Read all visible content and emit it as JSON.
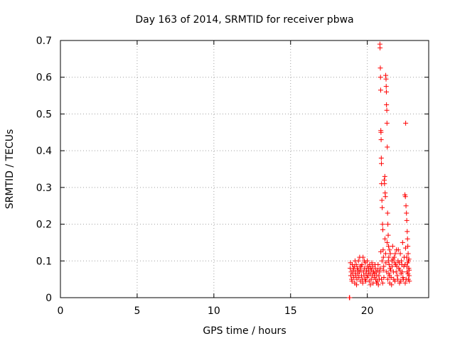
{
  "chart_data": {
    "type": "scatter",
    "title": "Day 163 of 2014, SRMTID for receiver pbwa",
    "xlabel": "GPS time / hours",
    "ylabel": "SRMTID / TECUs",
    "xlim": [
      0,
      24
    ],
    "ylim": [
      0,
      0.7
    ],
    "xticks": [
      0,
      5,
      10,
      15,
      20
    ],
    "xtick_labels": [
      "0",
      "5",
      "10",
      "15",
      "20"
    ],
    "yticks": [
      0,
      0.1,
      0.2,
      0.3,
      0.4,
      0.5,
      0.6,
      0.7
    ],
    "ytick_labels": [
      "0",
      "0.1",
      "0.2",
      "0.3",
      "0.4",
      "0.5",
      "0.6",
      "0.7"
    ],
    "grid": true,
    "marker": "plus",
    "color": "#ff0000",
    "series": [
      {
        "name": "SRMTID",
        "points": [
          [
            18.83,
            0.0
          ],
          [
            18.85,
            0.0
          ],
          [
            18.88,
            0.08
          ],
          [
            18.92,
            0.06
          ],
          [
            18.95,
            0.07
          ],
          [
            18.98,
            0.05
          ],
          [
            19.02,
            0.09
          ],
          [
            19.05,
            0.065
          ],
          [
            19.08,
            0.075
          ],
          [
            19.12,
            0.055
          ],
          [
            19.15,
            0.085
          ],
          [
            19.18,
            0.04
          ],
          [
            19.22,
            0.07
          ],
          [
            19.25,
            0.06
          ],
          [
            19.28,
            0.09
          ],
          [
            19.32,
            0.05
          ],
          [
            19.35,
            0.08
          ],
          [
            19.38,
            0.065
          ],
          [
            19.42,
            0.1
          ],
          [
            19.45,
            0.055
          ],
          [
            19.48,
            0.07
          ],
          [
            19.52,
            0.085
          ],
          [
            19.55,
            0.045
          ],
          [
            19.58,
            0.075
          ],
          [
            19.62,
            0.06
          ],
          [
            19.65,
            0.09
          ],
          [
            19.68,
            0.05
          ],
          [
            19.72,
            0.11
          ],
          [
            19.75,
            0.07
          ],
          [
            19.78,
            0.06
          ],
          [
            19.82,
            0.08
          ],
          [
            19.85,
            0.05
          ],
          [
            19.88,
            0.095
          ],
          [
            19.92,
            0.065
          ],
          [
            19.95,
            0.075
          ],
          [
            19.98,
            0.055
          ],
          [
            20.02,
            0.085
          ],
          [
            20.05,
            0.06
          ],
          [
            20.08,
            0.07
          ],
          [
            20.12,
            0.045
          ],
          [
            20.15,
            0.09
          ],
          [
            20.18,
            0.065
          ],
          [
            20.22,
            0.08
          ],
          [
            20.25,
            0.05
          ],
          [
            20.28,
            0.075
          ],
          [
            20.32,
            0.06
          ],
          [
            20.35,
            0.085
          ],
          [
            20.38,
            0.04
          ],
          [
            20.42,
            0.07
          ],
          [
            20.45,
            0.055
          ],
          [
            20.48,
            0.065
          ],
          [
            20.52,
            0.08
          ],
          [
            20.55,
            0.05
          ],
          [
            20.58,
            0.07
          ],
          [
            20.62,
            0.06
          ],
          [
            20.65,
            0.045
          ],
          [
            20.68,
            0.075
          ],
          [
            20.72,
            0.035
          ],
          [
            20.75,
            0.06
          ],
          [
            20.78,
            0.05
          ],
          [
            18.9,
            0.095
          ],
          [
            19.0,
            0.045
          ],
          [
            19.1,
            0.08
          ],
          [
            19.2,
            0.1
          ],
          [
            19.3,
            0.035
          ],
          [
            19.4,
            0.075
          ],
          [
            19.5,
            0.11
          ],
          [
            19.6,
            0.085
          ],
          [
            19.7,
            0.04
          ],
          [
            19.8,
            0.1
          ],
          [
            19.9,
            0.045
          ],
          [
            20.0,
            0.1
          ],
          [
            20.1,
            0.08
          ],
          [
            20.2,
            0.035
          ],
          [
            20.3,
            0.095
          ],
          [
            20.4,
            0.07
          ],
          [
            20.5,
            0.09
          ],
          [
            20.6,
            0.04
          ],
          [
            20.7,
            0.09
          ],
          [
            20.8,
            0.07
          ],
          [
            20.82,
            0.69
          ],
          [
            20.83,
            0.68
          ],
          [
            20.85,
            0.625
          ],
          [
            20.86,
            0.6
          ],
          [
            20.87,
            0.565
          ],
          [
            20.88,
            0.455
          ],
          [
            20.89,
            0.45
          ],
          [
            20.9,
            0.43
          ],
          [
            20.91,
            0.38
          ],
          [
            20.92,
            0.365
          ],
          [
            20.93,
            0.31
          ],
          [
            20.95,
            0.265
          ],
          [
            20.97,
            0.245
          ],
          [
            20.99,
            0.2
          ],
          [
            21.01,
            0.185
          ],
          [
            21.03,
            0.13
          ],
          [
            21.05,
            0.11
          ],
          [
            21.07,
            0.085
          ],
          [
            20.84,
            0.08
          ],
          [
            20.88,
            0.125
          ],
          [
            20.92,
            0.05
          ],
          [
            20.96,
            0.1
          ],
          [
            21.0,
            0.04
          ],
          [
            21.04,
            0.075
          ],
          [
            21.08,
            0.055
          ],
          [
            21.1,
            0.32
          ],
          [
            21.12,
            0.31
          ],
          [
            21.14,
            0.33
          ],
          [
            21.16,
            0.285
          ],
          [
            21.18,
            0.275
          ],
          [
            21.2,
            0.605
          ],
          [
            21.22,
            0.595
          ],
          [
            21.23,
            0.575
          ],
          [
            21.24,
            0.56
          ],
          [
            21.25,
            0.525
          ],
          [
            21.27,
            0.51
          ],
          [
            21.28,
            0.475
          ],
          [
            21.3,
            0.41
          ],
          [
            21.32,
            0.23
          ],
          [
            21.34,
            0.2
          ],
          [
            21.36,
            0.17
          ],
          [
            21.38,
            0.14
          ],
          [
            21.4,
            0.11
          ],
          [
            21.42,
            0.09
          ],
          [
            21.44,
            0.06
          ],
          [
            21.46,
            0.04
          ],
          [
            21.15,
            0.16
          ],
          [
            21.19,
            0.12
          ],
          [
            21.21,
            0.095
          ],
          [
            21.26,
            0.07
          ],
          [
            21.29,
            0.15
          ],
          [
            21.33,
            0.05
          ],
          [
            21.37,
            0.1
          ],
          [
            21.41,
            0.065
          ],
          [
            21.45,
            0.13
          ],
          [
            21.48,
            0.08
          ],
          [
            21.5,
            0.12
          ],
          [
            21.55,
            0.055
          ],
          [
            21.6,
            0.1
          ],
          [
            21.65,
            0.14
          ],
          [
            21.7,
            0.07
          ],
          [
            21.75,
            0.11
          ],
          [
            21.8,
            0.045
          ],
          [
            21.85,
            0.09
          ],
          [
            21.9,
            0.13
          ],
          [
            21.95,
            0.06
          ],
          [
            22.0,
            0.1
          ],
          [
            22.05,
            0.08
          ],
          [
            22.1,
            0.04
          ],
          [
            22.15,
            0.12
          ],
          [
            22.2,
            0.065
          ],
          [
            22.25,
            0.09
          ],
          [
            22.3,
            0.15
          ],
          [
            22.35,
            0.05
          ],
          [
            22.4,
            0.11
          ],
          [
            21.52,
            0.075
          ],
          [
            21.58,
            0.035
          ],
          [
            21.62,
            0.085
          ],
          [
            21.68,
            0.105
          ],
          [
            21.72,
            0.05
          ],
          [
            21.78,
            0.095
          ],
          [
            21.82,
            0.12
          ],
          [
            21.88,
            0.07
          ],
          [
            21.92,
            0.085
          ],
          [
            21.98,
            0.05
          ],
          [
            22.02,
            0.13
          ],
          [
            22.08,
            0.095
          ],
          [
            22.12,
            0.075
          ],
          [
            22.18,
            0.045
          ],
          [
            22.22,
            0.1
          ],
          [
            22.28,
            0.07
          ],
          [
            22.32,
            0.055
          ],
          [
            22.38,
            0.085
          ],
          [
            22.45,
            0.28
          ],
          [
            22.48,
            0.275
          ],
          [
            22.5,
            0.475
          ],
          [
            22.52,
            0.25
          ],
          [
            22.55,
            0.23
          ],
          [
            22.57,
            0.21
          ],
          [
            22.6,
            0.18
          ],
          [
            22.62,
            0.16
          ],
          [
            22.64,
            0.14
          ],
          [
            22.66,
            0.12
          ],
          [
            22.68,
            0.1
          ],
          [
            22.7,
            0.08
          ],
          [
            22.72,
            0.06
          ],
          [
            22.74,
            0.045
          ],
          [
            22.46,
            0.09
          ],
          [
            22.49,
            0.135
          ],
          [
            22.53,
            0.05
          ],
          [
            22.56,
            0.11
          ],
          [
            22.59,
            0.07
          ],
          [
            22.63,
            0.095
          ],
          [
            22.67,
            0.05
          ],
          [
            22.71,
            0.105
          ],
          [
            22.73,
            0.075
          ],
          [
            22.47,
            0.04
          ],
          [
            22.58,
            0.085
          ],
          [
            22.65,
            0.065
          ]
        ]
      }
    ]
  }
}
